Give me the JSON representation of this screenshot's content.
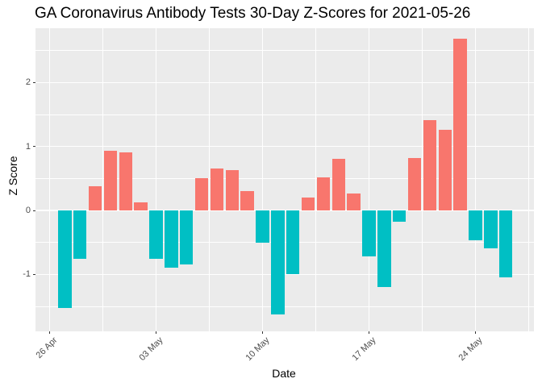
{
  "chart_data": {
    "type": "bar",
    "title": "GA Coronavirus Antibody Tests 30-Day Z-Scores for 2021-05-26",
    "xlabel": "Date",
    "ylabel": "Z Score",
    "ylim": [
      -1.87,
      2.86
    ],
    "y_ticks": [
      -1,
      0,
      1,
      2
    ],
    "y_minor_ticks": [
      -1.5,
      -0.5,
      0.5,
      1.5,
      2.5
    ],
    "x_ticks": [
      {
        "date": "2021-04-26",
        "label": "26 Apr"
      },
      {
        "date": "2021-05-03",
        "label": "03 May"
      },
      {
        "date": "2021-05-10",
        "label": "10 May"
      },
      {
        "date": "2021-05-17",
        "label": "17 May"
      },
      {
        "date": "2021-05-24",
        "label": "24 May"
      }
    ],
    "grid": true,
    "legend": false,
    "panel_bg": "#EBEBEB",
    "grid_color": "#FFFFFF",
    "axis_text_color": "#4D4D4D",
    "tick_mark_color": "#333333",
    "bar_colors": {
      "positive": "#F8766D",
      "negative": "#00BFC4"
    },
    "series": [
      {
        "date": "2021-04-27",
        "value": -1.53
      },
      {
        "date": "2021-04-28",
        "value": -0.76
      },
      {
        "date": "2021-04-29",
        "value": 0.38
      },
      {
        "date": "2021-04-30",
        "value": 0.93
      },
      {
        "date": "2021-05-01",
        "value": 0.91
      },
      {
        "date": "2021-05-02",
        "value": 0.12
      },
      {
        "date": "2021-05-03",
        "value": -0.76
      },
      {
        "date": "2021-05-04",
        "value": -0.9
      },
      {
        "date": "2021-05-05",
        "value": -0.85
      },
      {
        "date": "2021-05-06",
        "value": 0.5
      },
      {
        "date": "2021-05-07",
        "value": 0.65
      },
      {
        "date": "2021-05-08",
        "value": 0.63
      },
      {
        "date": "2021-05-09",
        "value": 0.3
      },
      {
        "date": "2021-05-10",
        "value": -0.5
      },
      {
        "date": "2021-05-11",
        "value": -1.63
      },
      {
        "date": "2021-05-12",
        "value": -1.0
      },
      {
        "date": "2021-05-13",
        "value": 0.2
      },
      {
        "date": "2021-05-14",
        "value": 0.52
      },
      {
        "date": "2021-05-15",
        "value": 0.81
      },
      {
        "date": "2021-05-16",
        "value": 0.27
      },
      {
        "date": "2021-05-17",
        "value": -0.72
      },
      {
        "date": "2021-05-18",
        "value": -1.2
      },
      {
        "date": "2021-05-19",
        "value": -0.18
      },
      {
        "date": "2021-05-20",
        "value": 0.82
      },
      {
        "date": "2021-05-21",
        "value": 1.41
      },
      {
        "date": "2021-05-22",
        "value": 1.26
      },
      {
        "date": "2021-05-23",
        "value": 2.68
      },
      {
        "date": "2021-05-24",
        "value": -0.47
      },
      {
        "date": "2021-05-25",
        "value": -0.59
      },
      {
        "date": "2021-05-26",
        "value": -1.05
      }
    ]
  }
}
